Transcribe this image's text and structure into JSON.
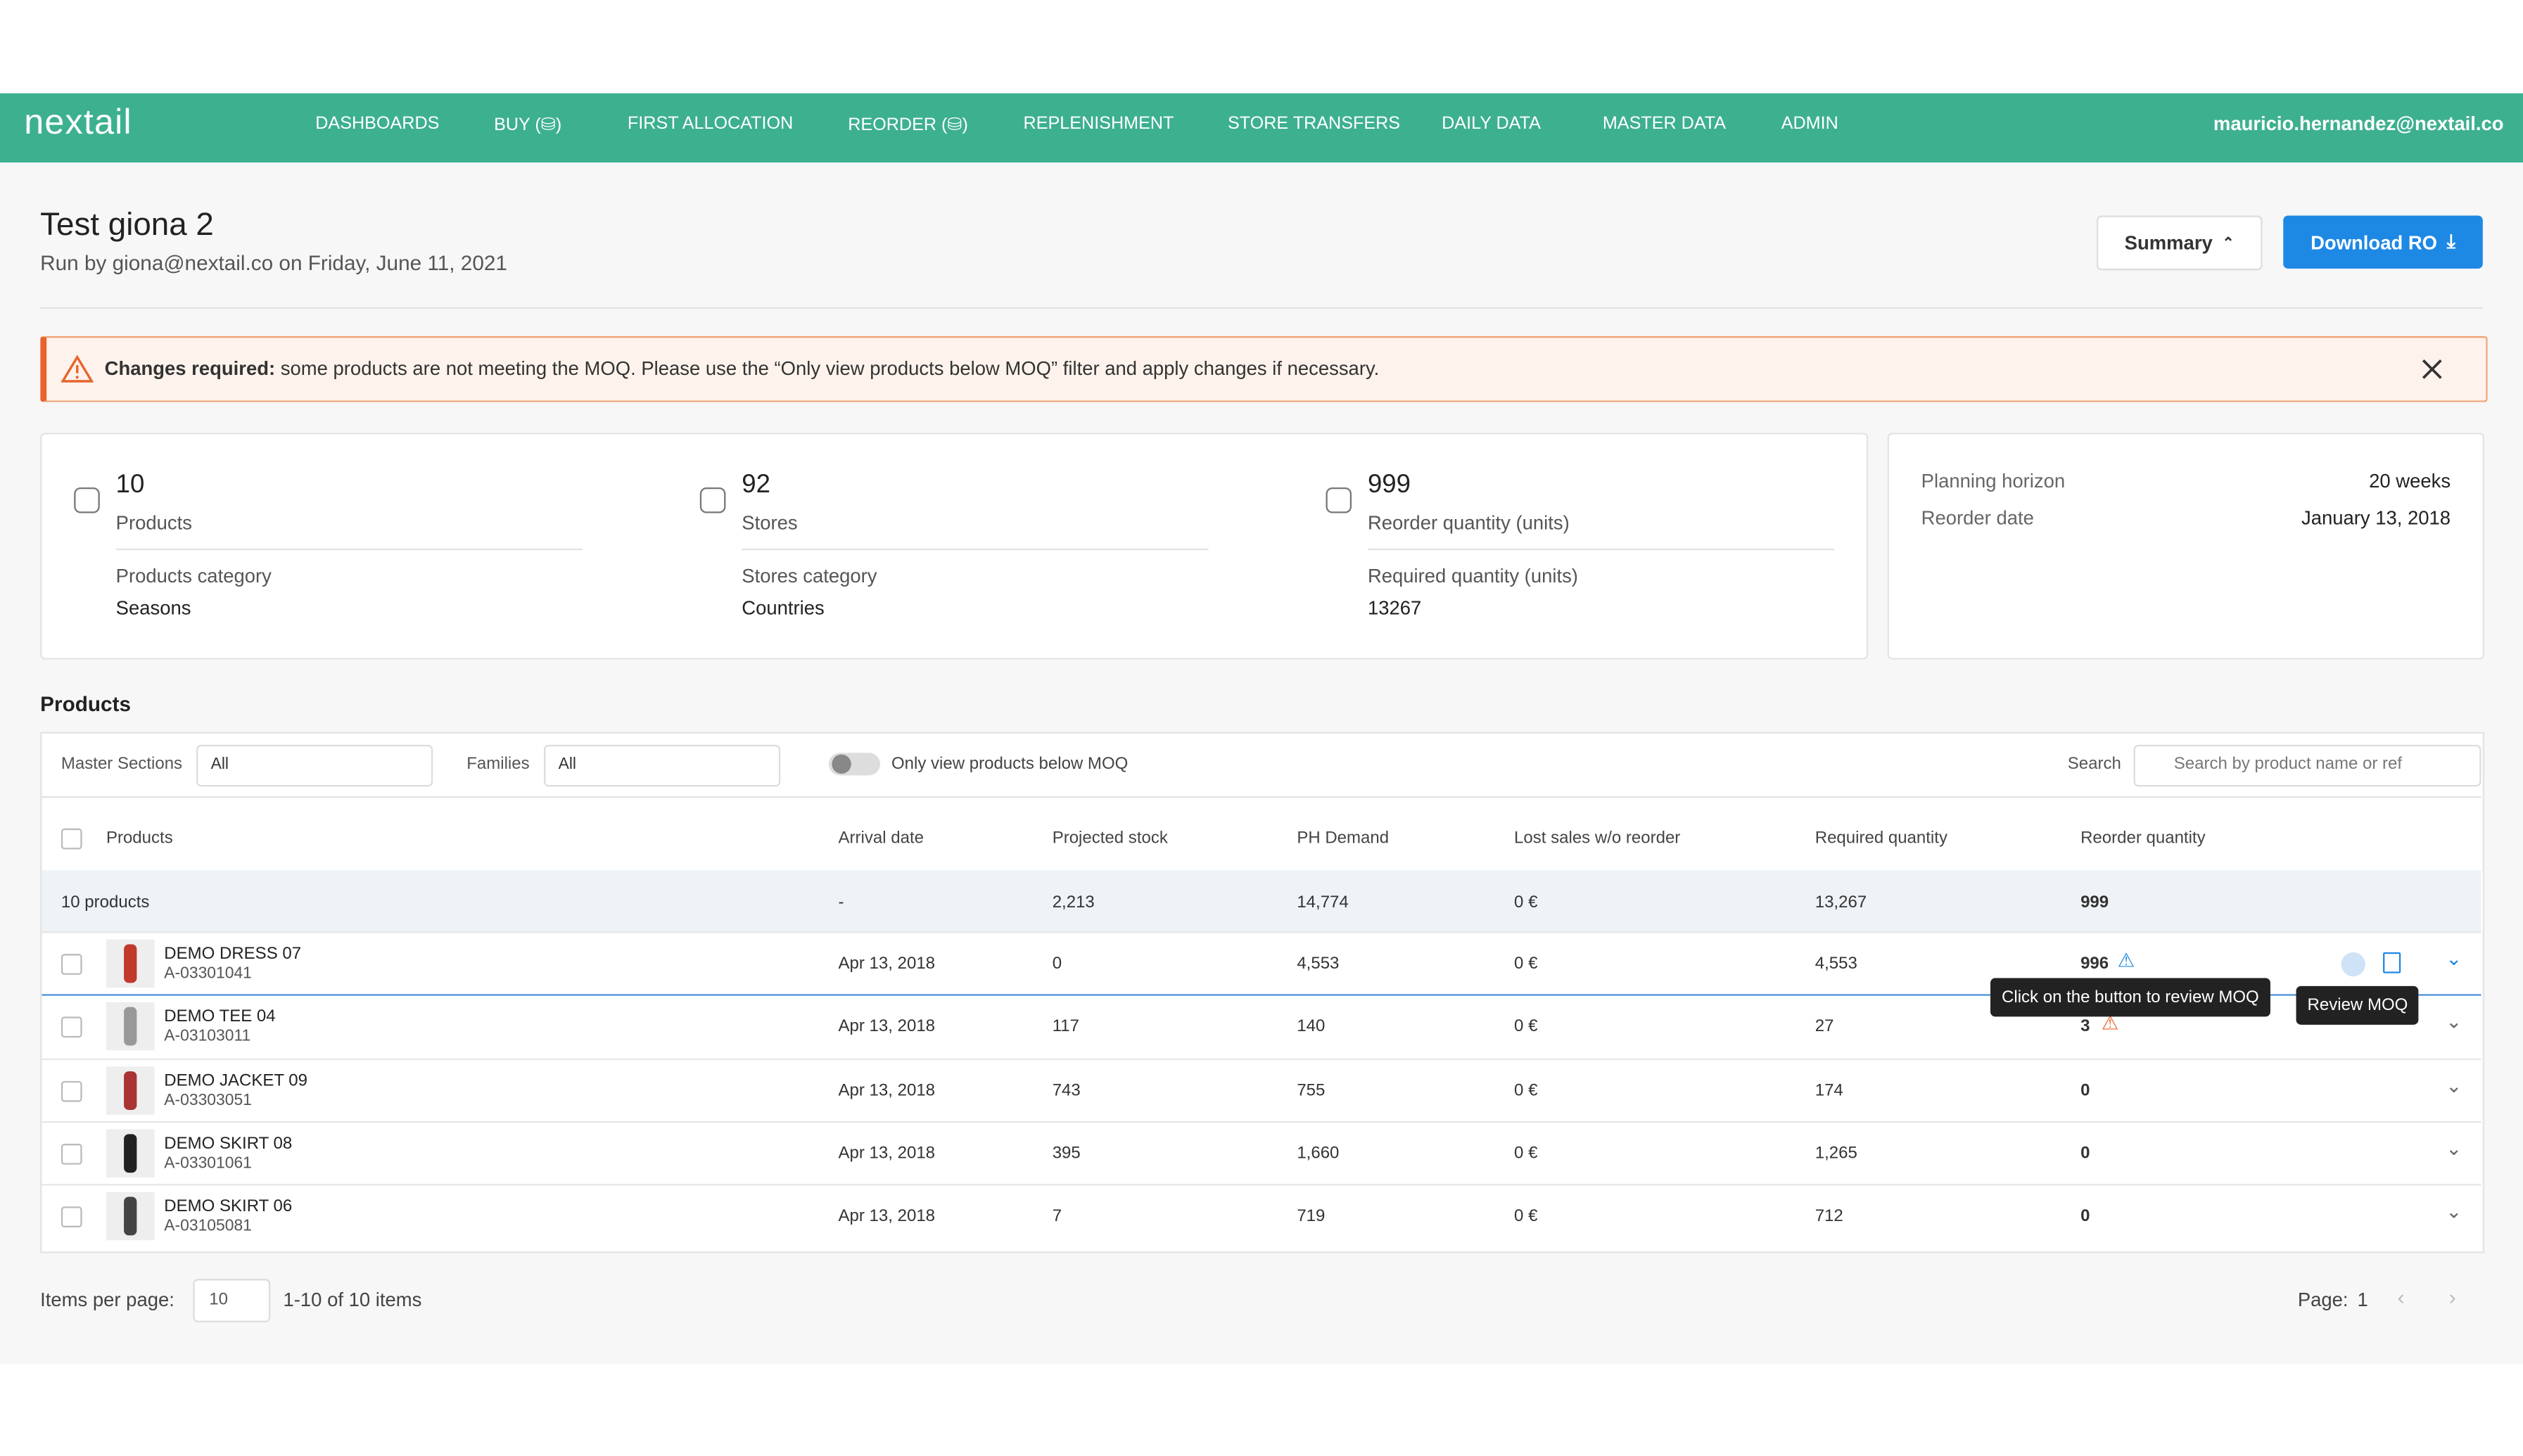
{
  "nav": {
    "logo": "nextail",
    "items": [
      "DASHBOARDS",
      "BUY (⛁)",
      "FIRST ALLOCATION",
      "REORDER (⛁)",
      "REPLENISHMENT",
      "STORE TRANSFERS",
      "DAILY DATA",
      "MASTER DATA",
      "ADMIN"
    ],
    "user": "mauricio.hernandez@nextail.co"
  },
  "header": {
    "title": "Test giona 2",
    "subtitle": "Run by giona@nextail.co on Friday, June 11, 2021",
    "summary_button": "Summary",
    "download_button": "Download RO"
  },
  "alert": {
    "bold": "Changes required:",
    "text": "some products are not meeting the MOQ. Please use the “Only view products below MOQ” filter and apply changes if necessary."
  },
  "stats": [
    {
      "value": "10",
      "label": "Products",
      "sub_label": "Products category",
      "sub_value": "Seasons"
    },
    {
      "value": "92",
      "label": "Stores",
      "sub_label": "Stores category",
      "sub_value": "Countries"
    },
    {
      "value": "999",
      "label": "Reorder quantity (units)",
      "sub_label": "Required quantity (units)",
      "sub_value": "13267"
    }
  ],
  "planning": [
    {
      "label": "Planning horizon",
      "value": "20 weeks"
    },
    {
      "label": "Reorder date",
      "value": "January 13, 2018"
    }
  ],
  "products": {
    "title": "Products",
    "filters": {
      "master_sections_label": "Master Sections",
      "master_sections_value": "All",
      "families_label": "Families",
      "families_value": "All",
      "toggle_label": "Only view products below MOQ",
      "search_label": "Search",
      "search_placeholder": "Search by product name or ref"
    },
    "columns": [
      "Products",
      "Arrival date",
      "Projected stock",
      "PH Demand",
      "Lost sales w/o reorder",
      "Required quantity",
      "Reorder quantity"
    ],
    "summary": [
      "10 products",
      "-",
      "2,213",
      "14,774",
      "0 €",
      "13,267",
      "999"
    ],
    "rows": [
      {
        "name": "DEMO DRESS 07",
        "ref": "A-03301041",
        "cells": [
          "Apr 13, 2018",
          "0",
          "4,553",
          "0 €",
          "4,553",
          "996"
        ]
      },
      {
        "name": "DEMO TEE 04",
        "ref": "A-03103011",
        "cells": [
          "Apr 13, 2018",
          "117",
          "140",
          "0 €",
          "27",
          "3"
        ]
      },
      {
        "name": "DEMO JACKET 09",
        "ref": "A-03303051",
        "cells": [
          "Apr 13, 2018",
          "743",
          "755",
          "0 €",
          "174",
          "0"
        ]
      },
      {
        "name": "DEMO SKIRT 08",
        "ref": "A-03301061",
        "cells": [
          "Apr 13, 2018",
          "395",
          "1,660",
          "0 €",
          "1,265",
          "0"
        ]
      },
      {
        "name": "DEMO SKIRT 06",
        "ref": "A-03105081",
        "cells": [
          "Apr 13, 2018",
          "7",
          "719",
          "0 €",
          "712",
          "0"
        ]
      }
    ],
    "tooltips": {
      "moq": "Click on the button to review MOQ",
      "review": "Review MOQ"
    },
    "pagination": {
      "items_per_page_label": "Items per page:",
      "items_per_page": "10",
      "range": "1-10 of 10 items",
      "page_label": "Page:",
      "page": "1"
    }
  }
}
